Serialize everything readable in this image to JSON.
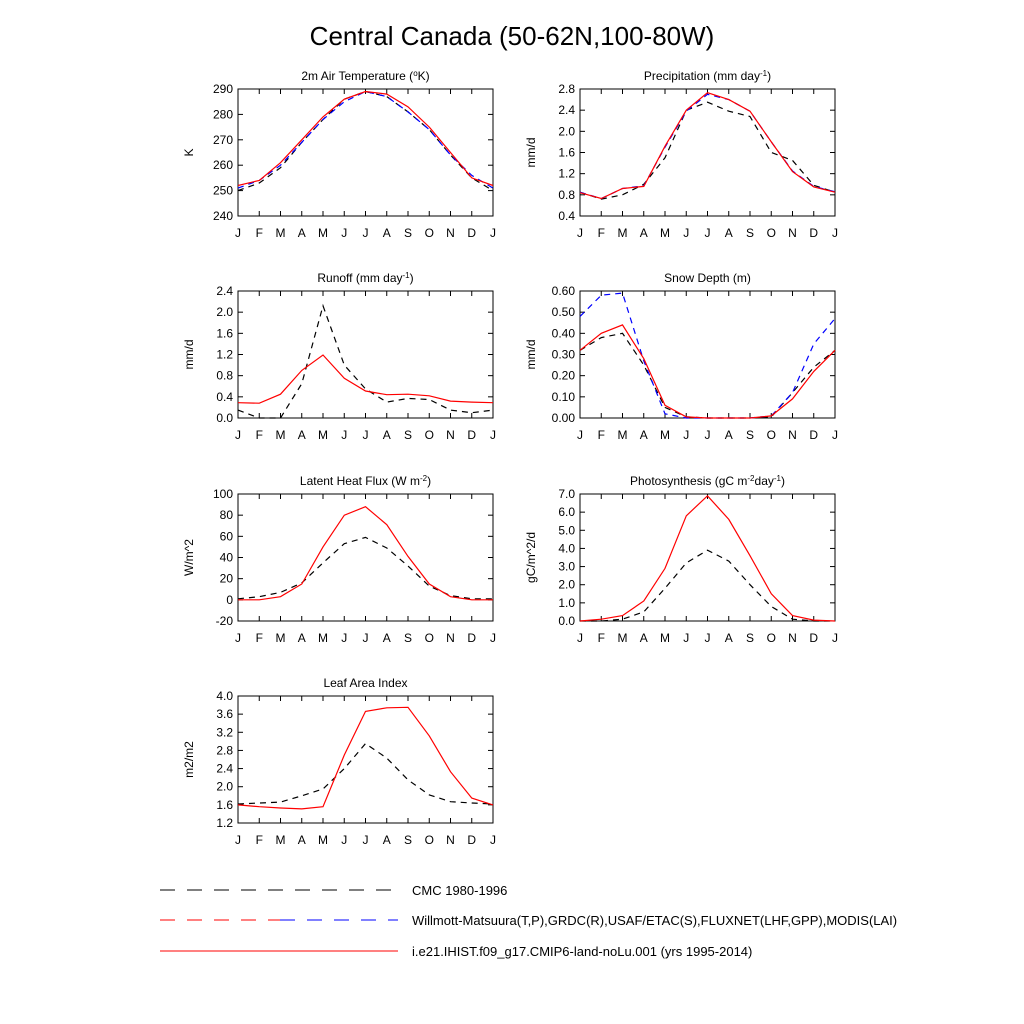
{
  "figure": {
    "title": "Central Canada (50-62N,100-80W)"
  },
  "colors": {
    "cmc": "#000000",
    "obs": "#0000ff",
    "model": "#ff0000"
  },
  "legend": [
    {
      "label": "CMC 1980-1996",
      "style": "dash-black"
    },
    {
      "label": "Willmott-Matsuura(T,P),GRDC(R),USAF/ETAC(S),FLUXNET(LHF,GPP),MODIS(LAI)",
      "style": "dash-red-blue"
    },
    {
      "label": "i.e21.IHIST.f09_g17.CMIP6-land-noLu.001 (yrs 1995-2014)",
      "style": "solid-red"
    }
  ],
  "chart_data": [
    {
      "type": "line",
      "title": "2m Air Temperature (°K)",
      "title_parts": [
        "2m Air Temperature (",
        "o",
        "K)"
      ],
      "ylabel": "K",
      "x": [
        "J",
        "F",
        "M",
        "A",
        "M",
        "J",
        "J",
        "A",
        "S",
        "O",
        "N",
        "D",
        "J"
      ],
      "ylim": [
        240,
        290
      ],
      "yticks": [
        "240",
        "250",
        "260",
        "270",
        "280",
        "290"
      ],
      "series": [
        {
          "role": "cmc",
          "values": [
            250,
            253,
            259,
            269,
            278,
            286,
            289,
            287,
            281,
            274,
            264,
            255,
            250
          ]
        },
        {
          "role": "obs",
          "values": [
            251,
            254,
            260,
            269,
            278,
            285,
            289,
            287,
            281,
            274,
            264,
            256,
            251
          ]
        },
        {
          "role": "model",
          "values": [
            252,
            254,
            261,
            270,
            279,
            286,
            289,
            288,
            283,
            275,
            265,
            255,
            252
          ]
        }
      ]
    },
    {
      "type": "line",
      "title": "Precipitation (mm day-1)",
      "title_parts": [
        "Precipitation (mm day",
        "-1",
        ")"
      ],
      "ylabel": "mm/d",
      "x": [
        "J",
        "F",
        "M",
        "A",
        "M",
        "J",
        "J",
        "A",
        "S",
        "O",
        "N",
        "D",
        "J"
      ],
      "ylim": [
        0.4,
        2.8
      ],
      "yticks": [
        "0.4",
        "0.8",
        "1.2",
        "1.6",
        "2.0",
        "2.4",
        "2.8"
      ],
      "series": [
        {
          "role": "cmc",
          "values": [
            0.85,
            0.72,
            0.8,
            1.0,
            1.5,
            2.4,
            2.55,
            2.38,
            2.28,
            1.6,
            1.45,
            0.98,
            0.85
          ]
        },
        {
          "role": "obs",
          "values": [
            0.85,
            0.73,
            0.92,
            0.97,
            1.7,
            2.38,
            2.7,
            2.6,
            2.38,
            1.8,
            1.25,
            0.96,
            0.86
          ]
        },
        {
          "role": "model",
          "values": [
            0.84,
            0.73,
            0.92,
            0.96,
            1.72,
            2.4,
            2.73,
            2.6,
            2.38,
            1.8,
            1.24,
            0.95,
            0.85
          ]
        }
      ]
    },
    {
      "type": "line",
      "title": "Runoff (mm day-1)",
      "title_parts": [
        "Runoff (mm day",
        "-1",
        ")"
      ],
      "ylabel": "mm/d",
      "x": [
        "J",
        "F",
        "M",
        "A",
        "M",
        "J",
        "J",
        "A",
        "S",
        "O",
        "N",
        "D",
        "J"
      ],
      "ylim": [
        0.0,
        2.4
      ],
      "yticks": [
        "0.0",
        "0.4",
        "0.8",
        "1.2",
        "1.6",
        "2.0",
        "2.4"
      ],
      "series": [
        {
          "role": "cmc",
          "values": [
            0.15,
            0.0,
            0.0,
            0.65,
            2.12,
            1.0,
            0.55,
            0.3,
            0.37,
            0.35,
            0.15,
            0.1,
            0.15
          ]
        },
        {
          "role": "model",
          "values": [
            0.29,
            0.28,
            0.45,
            0.9,
            1.19,
            0.75,
            0.51,
            0.44,
            0.45,
            0.42,
            0.32,
            0.3,
            0.29
          ]
        }
      ]
    },
    {
      "type": "line",
      "title": "Snow Depth (m)",
      "title_parts": [
        "Snow Depth (m)"
      ],
      "ylabel": "mm/d",
      "x": [
        "J",
        "F",
        "M",
        "A",
        "M",
        "J",
        "J",
        "A",
        "S",
        "O",
        "N",
        "D",
        "J"
      ],
      "ylim": [
        0.0,
        0.6
      ],
      "yticks": [
        "0.00",
        "0.10",
        "0.20",
        "0.30",
        "0.40",
        "0.50",
        "0.60"
      ],
      "series": [
        {
          "role": "cmc",
          "values": [
            0.32,
            0.38,
            0.4,
            0.25,
            0.05,
            0.005,
            0.0,
            0.0,
            0.0,
            0.005,
            0.12,
            0.24,
            0.32
          ]
        },
        {
          "role": "obs",
          "values": [
            0.48,
            0.58,
            0.59,
            0.27,
            0.02,
            0.0,
            0.0,
            0.0,
            0.0,
            0.01,
            0.12,
            0.35,
            0.47
          ]
        },
        {
          "role": "model",
          "values": [
            0.32,
            0.4,
            0.44,
            0.28,
            0.06,
            0.005,
            0.0,
            0.0,
            0.0,
            0.01,
            0.09,
            0.22,
            0.32
          ]
        }
      ]
    },
    {
      "type": "line",
      "title": "Latent Heat Flux (W m-2)",
      "title_parts": [
        "Latent Heat Flux (W m",
        "-2",
        ")"
      ],
      "ylabel": "W/m^2",
      "x": [
        "J",
        "F",
        "M",
        "A",
        "M",
        "J",
        "J",
        "A",
        "S",
        "O",
        "N",
        "D",
        "J"
      ],
      "ylim": [
        -20,
        100
      ],
      "yticks": [
        "-20",
        "0",
        "20",
        "40",
        "60",
        "80",
        "100"
      ],
      "series": [
        {
          "role": "cmc",
          "values": [
            1,
            3,
            7,
            16,
            35,
            53,
            59,
            49,
            32,
            13,
            4,
            1,
            1
          ]
        },
        {
          "role": "model",
          "values": [
            0,
            0,
            3,
            15,
            50,
            80,
            88,
            71,
            41,
            15,
            3,
            0,
            0
          ]
        }
      ]
    },
    {
      "type": "line",
      "title": "Photosynthesis (gC m-2day-1)",
      "title_parts": [
        "Photosynthesis (gC m",
        "-2",
        "day",
        "-1",
        ")"
      ],
      "ylabel": "gC/m^2/d",
      "x": [
        "J",
        "F",
        "M",
        "A",
        "M",
        "J",
        "J",
        "A",
        "S",
        "O",
        "N",
        "D",
        "J"
      ],
      "ylim": [
        0.0,
        7.0
      ],
      "yticks": [
        "0.0",
        "1.0",
        "2.0",
        "3.0",
        "4.0",
        "5.0",
        "6.0",
        "7.0"
      ],
      "series": [
        {
          "role": "cmc",
          "values": [
            0.0,
            0.0,
            0.1,
            0.5,
            1.8,
            3.2,
            3.9,
            3.3,
            2.0,
            0.8,
            0.1,
            0.0,
            0.0
          ]
        },
        {
          "role": "model",
          "values": [
            0.0,
            0.1,
            0.3,
            1.1,
            2.9,
            5.8,
            6.9,
            5.6,
            3.6,
            1.5,
            0.3,
            0.05,
            0.0
          ]
        }
      ]
    },
    {
      "type": "line",
      "title": "Leaf Area Index",
      "title_parts": [
        "Leaf Area Index"
      ],
      "ylabel": "m2/m2",
      "x": [
        "J",
        "F",
        "M",
        "A",
        "M",
        "J",
        "J",
        "A",
        "S",
        "O",
        "N",
        "D",
        "J"
      ],
      "ylim": [
        1.2,
        4.0
      ],
      "yticks": [
        "1.2",
        "1.6",
        "2.0",
        "2.4",
        "2.8",
        "3.2",
        "3.6",
        "4.0"
      ],
      "series": [
        {
          "role": "cmc",
          "values": [
            1.62,
            1.64,
            1.66,
            1.8,
            1.95,
            2.4,
            2.95,
            2.63,
            2.15,
            1.82,
            1.67,
            1.64,
            1.62
          ]
        },
        {
          "role": "model",
          "values": [
            1.6,
            1.56,
            1.53,
            1.51,
            1.56,
            2.7,
            3.66,
            3.74,
            3.75,
            3.12,
            2.33,
            1.75,
            1.6
          ]
        }
      ]
    }
  ]
}
